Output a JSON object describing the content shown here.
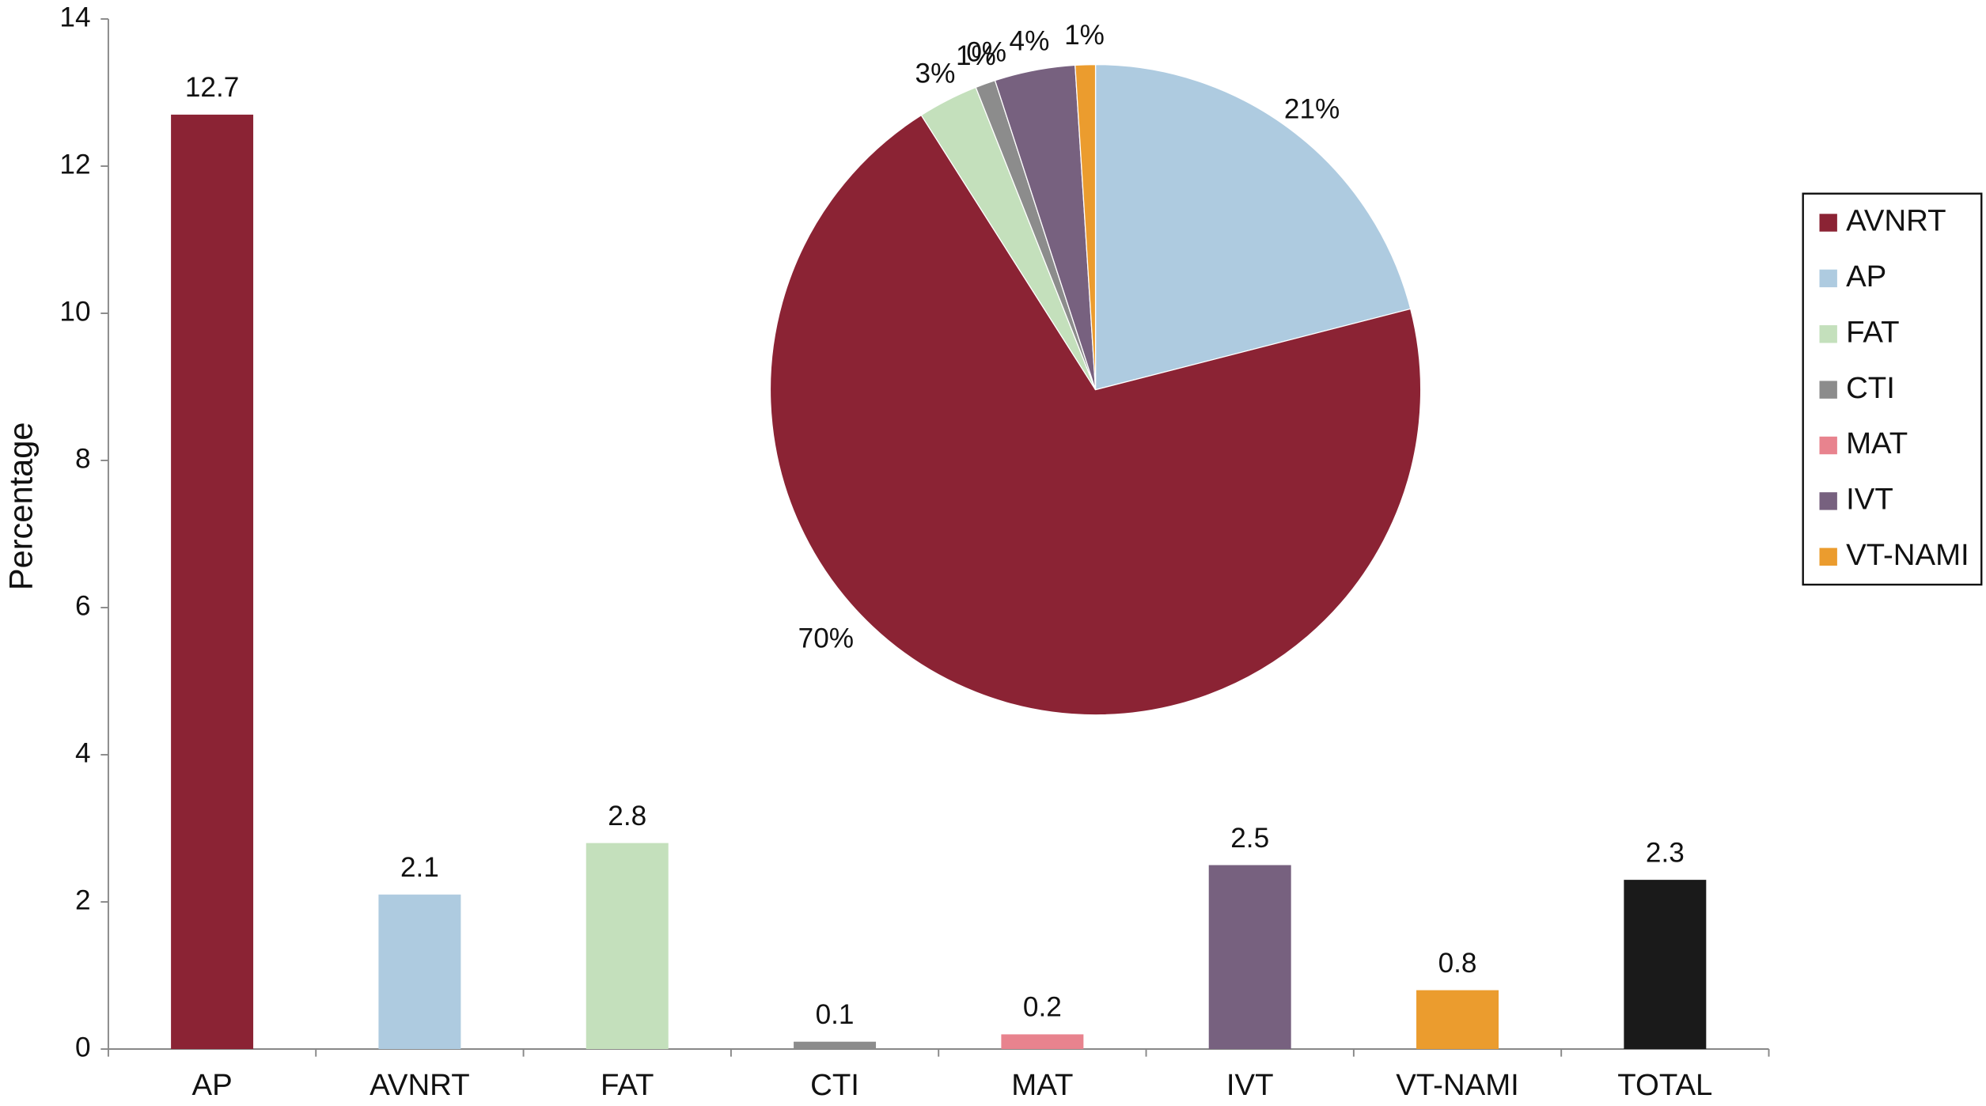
{
  "chart_data": [
    {
      "type": "bar",
      "y_label": "Percentage",
      "categories": [
        "AP",
        "AVNRT",
        "FAT",
        "CTI",
        "MAT",
        "IVT",
        "VT-NAMI",
        "TOTAL"
      ],
      "values": [
        12.7,
        2.1,
        2.8,
        0.1,
        0.2,
        2.5,
        0.8,
        2.3
      ],
      "colors": [
        "#8b2334",
        "#aecbe0",
        "#c4e0bc",
        "#8c8c8c",
        "#e8838e",
        "#77617f",
        "#eb9c2e",
        "#1a1a1a"
      ],
      "ylim": [
        0,
        14
      ],
      "yticks": [
        0,
        2,
        4,
        6,
        8,
        10,
        12,
        14
      ]
    },
    {
      "type": "pie",
      "categories": [
        "AVNRT",
        "AP",
        "FAT",
        "CTI",
        "MAT",
        "IVT",
        "VT-NAMI"
      ],
      "values": [
        70,
        21,
        3,
        1,
        0,
        4,
        1
      ],
      "value_labels": [
        "70%",
        "21%",
        "3%",
        "1%",
        "0%",
        "4%",
        "1%"
      ],
      "colors": [
        "#8b2334",
        "#aecbe0",
        "#c4e0bc",
        "#8c8c8c",
        "#e8838e",
        "#77617f",
        "#eb9c2e"
      ],
      "legend": "right"
    }
  ]
}
